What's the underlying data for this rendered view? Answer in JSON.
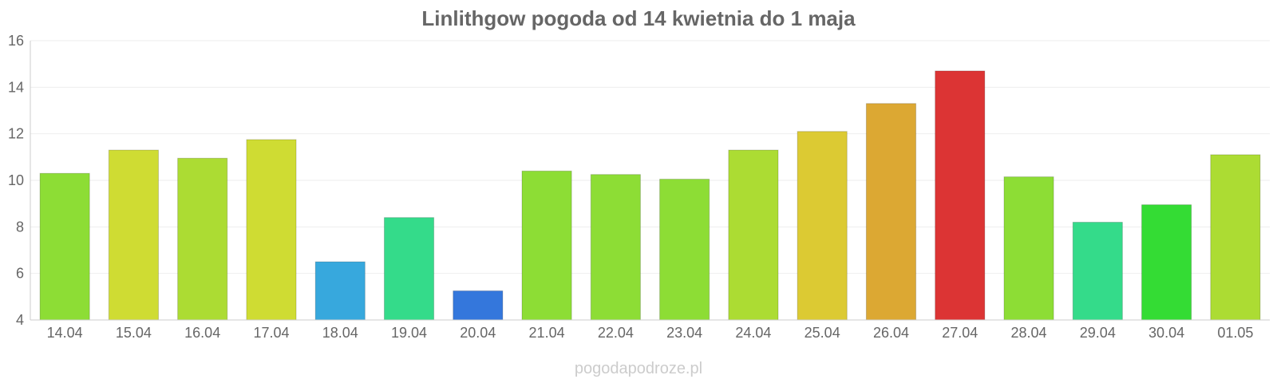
{
  "chart_data": {
    "type": "bar",
    "title": "Linlithgow pogoda od 14 kwietnia do 1 maja",
    "xlabel": "",
    "ylabel": "",
    "ylim": [
      4,
      16
    ],
    "yticks": [
      "4",
      "6",
      "8",
      "10",
      "12",
      "14",
      "16"
    ],
    "grid": true,
    "legend": "none",
    "categories": [
      "14.04",
      "15.04",
      "16.04",
      "17.04",
      "18.04",
      "19.04",
      "20.04",
      "21.04",
      "22.04",
      "23.04",
      "24.04",
      "25.04",
      "26.04",
      "27.04",
      "28.04",
      "29.04",
      "30.04",
      "01.05"
    ],
    "values": [
      10.3,
      11.3,
      10.95,
      11.75,
      6.5,
      8.4,
      5.25,
      10.4,
      10.25,
      10.05,
      11.3,
      12.1,
      13.3,
      14.7,
      10.15,
      8.2,
      8.95,
      11.1
    ],
    "colors": [
      "#8ddd35",
      "#cfdc33",
      "#acdc33",
      "#cfdc33",
      "#37a8dd",
      "#34db8a",
      "#3477dc",
      "#8ddd35",
      "#8ddd35",
      "#8ddd35",
      "#acdc33",
      "#dcca33",
      "#dca833",
      "#dc3434",
      "#8ddd35",
      "#34db8a",
      "#34dc34",
      "#acdc33"
    ]
  },
  "credit": "pogodapodroze.pl"
}
